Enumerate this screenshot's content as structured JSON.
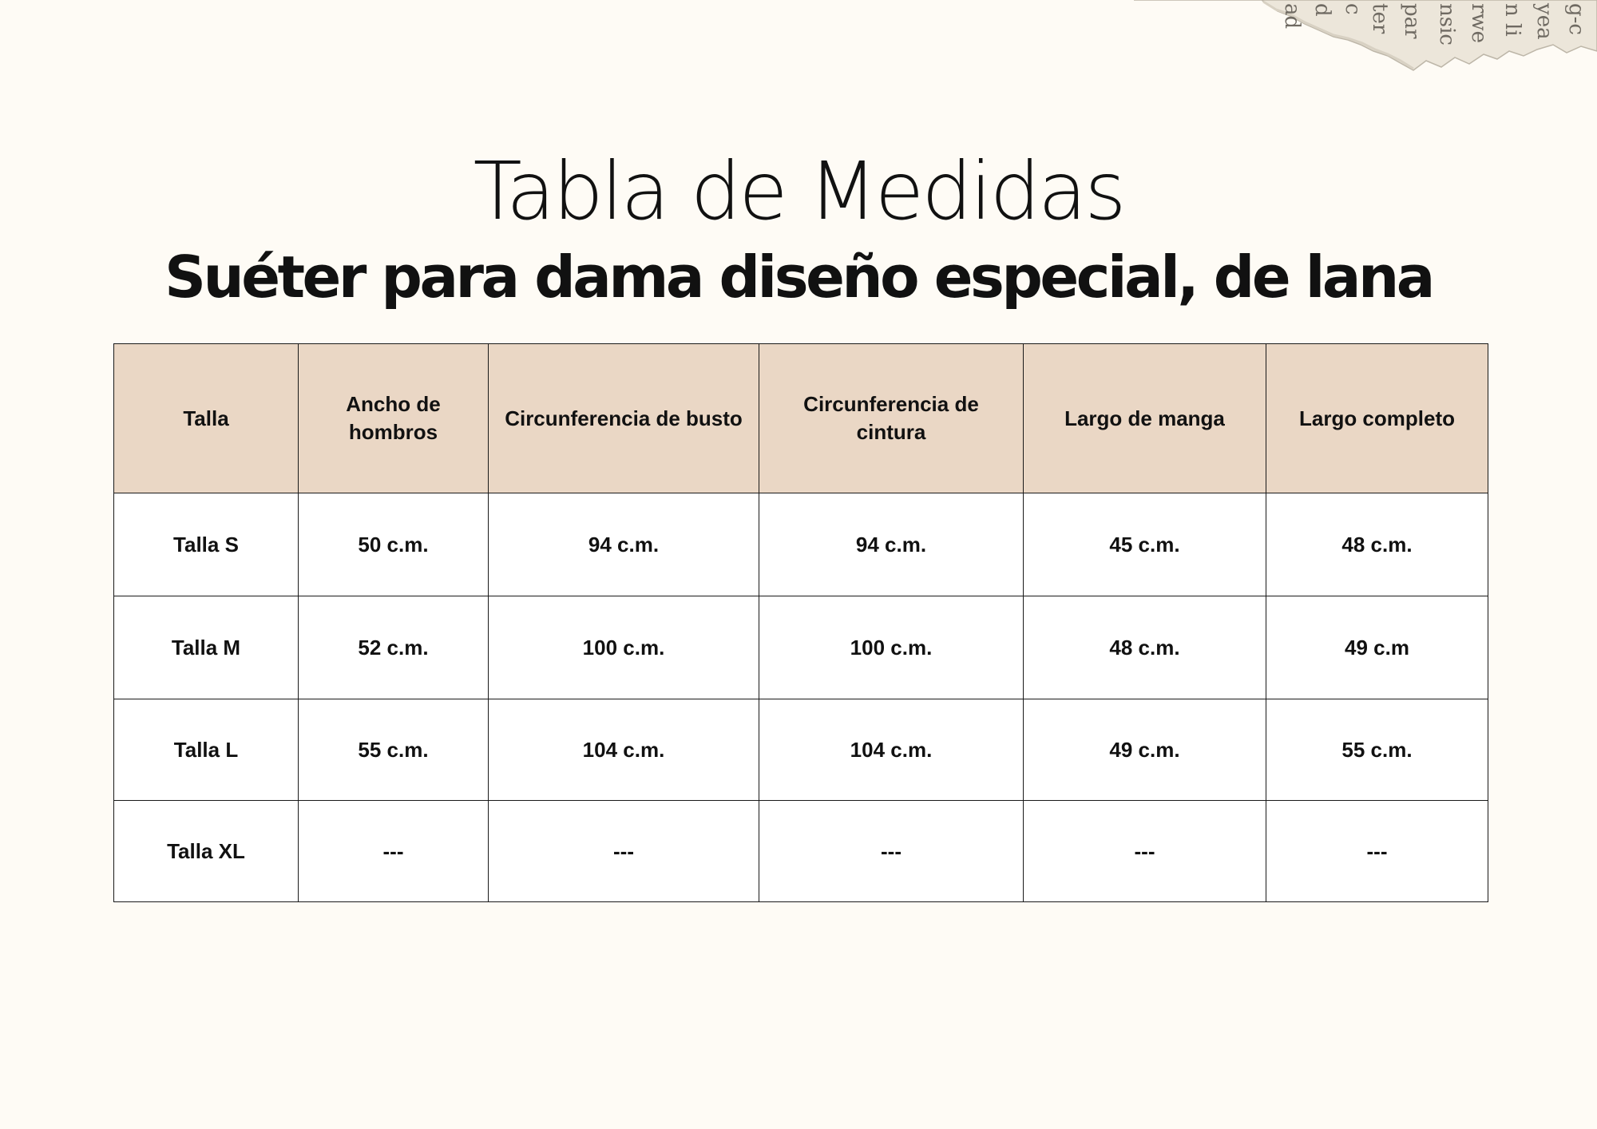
{
  "title": "Tabla de Medidas",
  "subtitle": "Suéter para dama diseño especial, de lana",
  "table": {
    "headers": [
      "Talla",
      "Ancho de hombros",
      "Circunferencia de busto",
      "Circunferencia de cintura",
      "Largo de manga",
      "Largo completo"
    ],
    "rows": [
      [
        "Talla S",
        "50 c.m.",
        "94 c.m.",
        "94 c.m.",
        "45 c.m.",
        "48 c.m."
      ],
      [
        "Talla M",
        "52 c.m.",
        "100 c.m.",
        "100 c.m.",
        "48 c.m.",
        "49 c.m"
      ],
      [
        "Talla L",
        "55 c.m.",
        "104 c.m.",
        "104 c.m.",
        "49 c.m.",
        "55 c.m."
      ],
      [
        "Talla XL",
        "---",
        "---",
        "---",
        "---",
        "---"
      ]
    ]
  },
  "colors": {
    "background": "#fefbf5",
    "header_fill": "#ead7c5",
    "cell_fill": "#ffffff",
    "border": "#1a1a1a",
    "decoration_paper": "#ece6da"
  },
  "decoration": {
    "icon": "torn-newspaper-scrap"
  }
}
